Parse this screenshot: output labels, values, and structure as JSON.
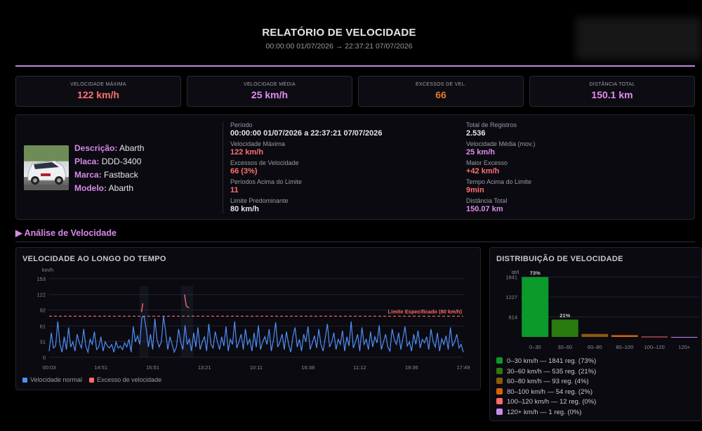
{
  "header": {
    "title": "RELATÓRIO DE VELOCIDADE",
    "period": "00:00:00 01/07/2026 → 22:37:21 07/07/2026"
  },
  "kpis": [
    {
      "label": "Velocidade Máxima",
      "value": "122 km/h",
      "color": "#ff7070"
    },
    {
      "label": "Velocidade Média",
      "value": "25 km/h",
      "color": "#e48cf0"
    },
    {
      "label": "Excessos de Vel.",
      "value": "66",
      "color": "#e07a2c"
    },
    {
      "label": "Distância Total",
      "value": "150.1 km",
      "color": "#e48cf0"
    }
  ],
  "vehicle": {
    "description_label": "Descrição:",
    "description": "Abarth",
    "plate_label": "Placa:",
    "plate": "DDD-3400",
    "brand_label": "Marca:",
    "brand": "Fastback",
    "model_label": "Modelo:",
    "model": "Abarth"
  },
  "stats_left": {
    "periodo_label": "Período",
    "periodo": "00:00:00 01/07/2026 a 22:37:21 07/07/2026",
    "vmax_label": "Velocidade Máxima",
    "vmax": "122 km/h",
    "excessos_label": "Excessos de Velocidade",
    "excessos": "66 (3%)",
    "periodos_label": "Períodos Acima do Limite",
    "periodos": "11",
    "limite_label": "Limite Predominante",
    "limite": "80 km/h"
  },
  "stats_right": {
    "registros_label": "Total de Registros",
    "registros": "2.536",
    "vmed_label": "Velocidade Média (mov.)",
    "vmed": "25 km/h",
    "maior_label": "Maior Excesso",
    "maior": "+42 km/h",
    "tempo_label": "Tempo Acima do Limite",
    "tempo": "9min",
    "dist_label": "Distância Total",
    "dist": "150.07 km"
  },
  "section": {
    "title": "▶ Análise de Velocidade"
  },
  "charts_text": {
    "timeline_title": "VELOCIDADE AO LONGO DO TEMPO",
    "timeline_unit": "km/h",
    "limit_label": "Limite Especificado (80 km/h)",
    "legend_normal": "Velocidade normal",
    "legend_excess": "Excesso de velocidade",
    "dist_title": "DISTRIBUIÇÃO DE VELOCIDADE",
    "dist_unit": "qtd"
  },
  "colors": {
    "normal": "#4f8ff7",
    "excess": "#ff6b6b",
    "limit": "#ff6b6b"
  },
  "chart_data": [
    {
      "type": "line",
      "title": "VELOCIDADE AO LONGO DO TEMPO",
      "ylabel": "km/h",
      "ylim": [
        0,
        153
      ],
      "yticks": [
        0,
        31,
        61,
        92,
        122,
        153
      ],
      "xticks": [
        "00:03",
        "14:51",
        "15:51",
        "13:21",
        "10:11",
        "16:38",
        "11:12",
        "19:36",
        "17:49"
      ],
      "limit": 80,
      "grid": true,
      "legend": "bottom-left",
      "series": [
        {
          "name": "Velocidade normal",
          "values": [
            12,
            48,
            18,
            22,
            70,
            25,
            10,
            40,
            15,
            58,
            20,
            30,
            12,
            45,
            28,
            18,
            55,
            22,
            10,
            35,
            25,
            50,
            15,
            20,
            40,
            12,
            30,
            22,
            18,
            25,
            10,
            30,
            18,
            22,
            15,
            28,
            20,
            35,
            10,
            60,
            30,
            42,
            25,
            78,
            80,
            55,
            20,
            45,
            15,
            75,
            35,
            20,
            30,
            80,
            50,
            15,
            40,
            25,
            10,
            20,
            55,
            30,
            15,
            62,
            25,
            35,
            12,
            48,
            20,
            58,
            15,
            30,
            40,
            12,
            65,
            25,
            18,
            50,
            30,
            15,
            40,
            22,
            60,
            12,
            35,
            25,
            70,
            18,
            30,
            45,
            15,
            55,
            25,
            35,
            12,
            48,
            20,
            62,
            15,
            30,
            40,
            25,
            55,
            12,
            35,
            68,
            20,
            30,
            45,
            15,
            50,
            25,
            10,
            40,
            58,
            20,
            35,
            12,
            45,
            30,
            60,
            15,
            28,
            42,
            18,
            55,
            25,
            12,
            38,
            65,
            20,
            30,
            48,
            15,
            35,
            25,
            52,
            12,
            40,
            22,
            70,
            18,
            30,
            45,
            12,
            58,
            25,
            35,
            15,
            50,
            20,
            40,
            28,
            62,
            15,
            30,
            45,
            20,
            12,
            55,
            35,
            25,
            48,
            15,
            38,
            60,
            22,
            30,
            12,
            45,
            25,
            52,
            18,
            35,
            28,
            40,
            15,
            55,
            30,
            20,
            48,
            12,
            36,
            25,
            42,
            15,
            58,
            22,
            30,
            45,
            18,
            25,
            10
          ]
        },
        {
          "name": "Excesso de velocidade",
          "segments": [
            [
              {
                "x": 0.223,
                "y": 88
              },
              {
                "x": 0.226,
                "y": 105
              }
            ],
            [
              {
                "x": 0.327,
                "y": 122
              },
              {
                "x": 0.331,
                "y": 100
              },
              {
                "x": 0.334,
                "y": 98
              },
              {
                "x": 0.338,
                "y": 96
              }
            ]
          ]
        }
      ]
    },
    {
      "type": "bar",
      "title": "DISTRIBUIÇÃO DE VELOCIDADE",
      "ylabel": "qtd",
      "ylim": [
        0,
        2050
      ],
      "yticks": [
        614,
        1227,
        1841
      ],
      "categories": [
        "0–30",
        "30–60",
        "60–80",
        "80–100",
        "100–120",
        "120+"
      ],
      "values": [
        1841,
        535,
        93,
        54,
        12,
        1
      ],
      "percent_labels": [
        "73%",
        "21%",
        "",
        "",
        "",
        ""
      ],
      "bar_colors": [
        "#0d9a2c",
        "#2a7a10",
        "#8a5a10",
        "#d8620a",
        "#ff6b6b",
        "#c98af0"
      ],
      "legend": [
        "0–30 km/h — 1841 reg. (73%)",
        "30–60 km/h — 535 reg. (21%)",
        "60–80 km/h — 93 reg. (4%)",
        "80–100 km/h — 54 reg. (2%)",
        "100–120 km/h — 12 reg. (0%)",
        "120+ km/h — 1 reg. (0%)"
      ]
    }
  ]
}
